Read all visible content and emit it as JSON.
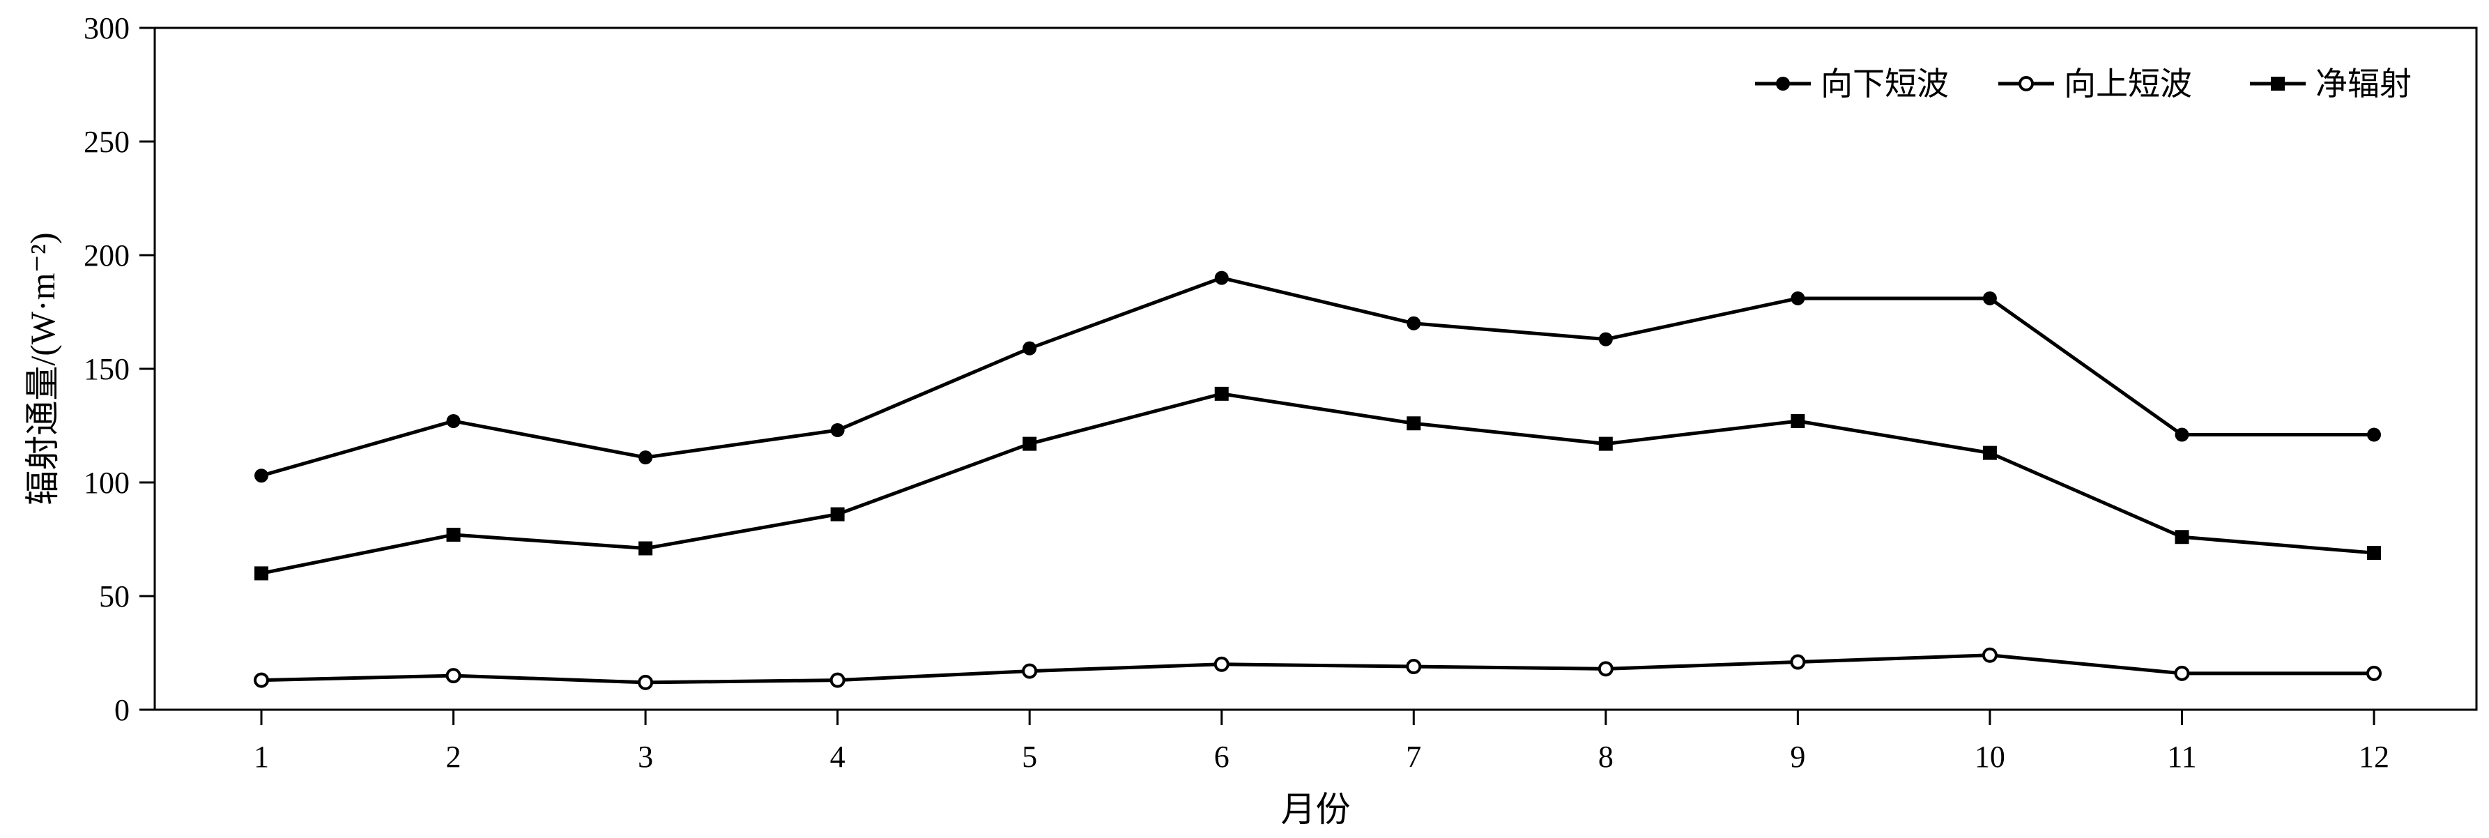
{
  "chart_data": {
    "type": "line",
    "title": "",
    "xlabel": "月份",
    "ylabel": "辐射通量/(W·m⁻²)",
    "categories": [
      "1",
      "2",
      "3",
      "4",
      "5",
      "6",
      "7",
      "8",
      "9",
      "10",
      "11",
      "12"
    ],
    "ylim": [
      0,
      300
    ],
    "yticks": [
      0,
      50,
      100,
      150,
      200,
      250,
      300
    ],
    "grid": false,
    "legend_position": "top-right",
    "series": [
      {
        "name": "向下短波",
        "marker": "filled-circle",
        "values": [
          103,
          127,
          111,
          123,
          159,
          190,
          170,
          163,
          181,
          181,
          121,
          121
        ]
      },
      {
        "name": "向上短波",
        "marker": "open-circle",
        "values": [
          13,
          15,
          12,
          13,
          17,
          20,
          19,
          18,
          21,
          24,
          16,
          16
        ]
      },
      {
        "name": "净辐射",
        "marker": "filled-square",
        "values": [
          60,
          77,
          71,
          86,
          117,
          139,
          126,
          117,
          127,
          113,
          76,
          69
        ]
      }
    ],
    "colors": {
      "line": "#000000",
      "background": "#ffffff"
    }
  }
}
